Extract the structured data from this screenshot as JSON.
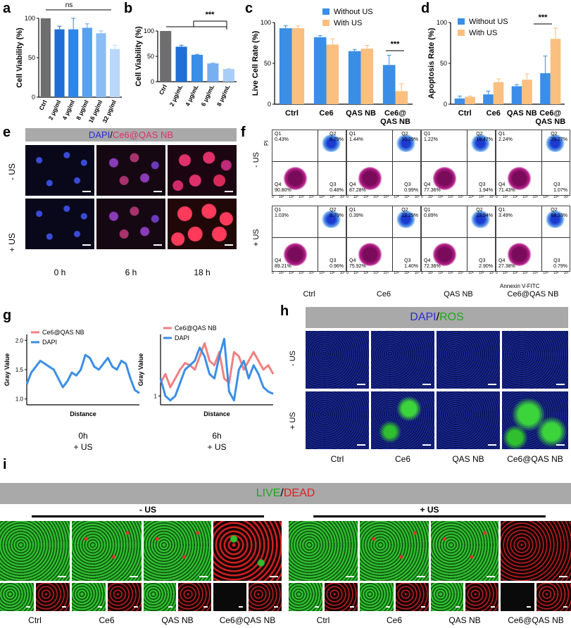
{
  "panels": {
    "a": {
      "label": "a",
      "ylabel": "Cell Viability (%)",
      "yticks": [
        "0",
        "50",
        "100"
      ],
      "sig": "ns"
    },
    "b": {
      "label": "b",
      "ylabel": "Cell Viability (%)",
      "yticks": [
        "0",
        "50",
        "100"
      ],
      "sig": "***"
    },
    "c": {
      "label": "c",
      "ylabel": "Live Cell Rate (%)",
      "yticks": [
        "0",
        "50",
        "100"
      ],
      "sig": "***",
      "legend": [
        "Without US",
        "With US"
      ]
    },
    "d": {
      "label": "d",
      "ylabel": "Apoptosis Rate (%)",
      "yticks": [
        "0",
        "50",
        "100"
      ],
      "sig": "***",
      "legend": [
        "Without US",
        "With US"
      ]
    },
    "e": {
      "label": "e",
      "title_a": "DAPI",
      "title_sep": "/",
      "title_b": "Ce6@QAS NB",
      "rows": [
        "- US",
        "+ US"
      ],
      "cols": [
        "0 h",
        "6 h",
        "18 h"
      ]
    },
    "f": {
      "label": "f",
      "ylabel": "PI",
      "xlabel": "Annexin V-FITC",
      "rows": [
        "- US",
        "+ US"
      ],
      "cols": [
        "Ctrl",
        "Ce6",
        "QAS NB",
        "Ce6@QAS NB"
      ],
      "ticks": [
        "0",
        "10¹",
        "10²",
        "10³",
        "10⁴",
        "10⁵",
        "10⁶",
        "10⁷"
      ],
      "plots": [
        {
          "q1": "Q1\n0.43%",
          "q2": "Q2\n8.29%",
          "q3": "Q3\n0.48%",
          "q4": "Q4\n90.80%"
        },
        {
          "q1": "Q1\n1.44%",
          "q2": "Q2\n10.29%",
          "q3": "Q3\n0.99%",
          "q4": "Q4\n87.28%"
        },
        {
          "q1": "Q1\n1.22%",
          "q2": "Q2\n19.47%",
          "q3": "Q3\n1.94%",
          "q4": "Q4\n77.36%"
        },
        {
          "q1": "Q1\n2.24%",
          "q2": "Q2\n25.27%",
          "q3": "Q3\n1.07%",
          "q4": "Q4\n71.43%"
        },
        {
          "q1": "Q1\n1.03%",
          "q2": "Q2\n8.79%",
          "q3": "Q3\n0.96%",
          "q4": "Q4\n89.21%"
        },
        {
          "q1": "Q1\n0.39%",
          "q2": "Q2\n22.29%",
          "q3": "Q3\n1.40%",
          "q4": "Q4\n75.92%"
        },
        {
          "q1": "Q1\n0.89%",
          "q2": "Q2\n23.94%",
          "q3": "Q3\n2.90%",
          "q4": "Q4\n72.36%"
        },
        {
          "q1": "Q1\n3.49%",
          "q2": "Q2\n68.33%",
          "q3": "Q3\n0.79%",
          "q4": "Q4\n27.38%"
        }
      ]
    },
    "g": {
      "label": "g",
      "ylabel": "Gray Value",
      "xlabel": "Distance",
      "legend": [
        "Ce6@QAS NB",
        "DAPI"
      ],
      "cap1": "0h",
      "cap1b": "+ US",
      "cap2": "6h",
      "cap2b": "+ US",
      "yt1": [
        "1.0",
        "1.5",
        "2.0"
      ],
      "yt2": [
        "1"
      ]
    },
    "h": {
      "label": "h",
      "title_a": "DAPI",
      "title_sep": "/",
      "title_b": "ROS",
      "rows": [
        "- US",
        "+ US"
      ],
      "cols": [
        "Ctrl",
        "Ce6",
        "QAS NB",
        "Ce6@QAS NB"
      ]
    },
    "i": {
      "label": "i",
      "title_a": "LIVE",
      "title_sep": "/",
      "title_b": "DEAD",
      "group1": "- US",
      "group2": "+ US",
      "cols": [
        "Ctrl",
        "Ce6",
        "QAS NB",
        "Ce6@QAS NB"
      ]
    }
  },
  "chart_data": [
    {
      "type": "bar",
      "title": "a",
      "ylabel": "Cell Viability (%)",
      "ylim": [
        0,
        100
      ],
      "categories": [
        "Ctrl",
        "2 μg/ml",
        "4 μg/ml",
        "8 μg/ml",
        "16 μg/ml",
        "32 μg/ml"
      ],
      "values": [
        100,
        86,
        86,
        88,
        81,
        61
      ],
      "errors": [
        0,
        4,
        14,
        5,
        3,
        5
      ],
      "colors": [
        "#6e6e6e",
        "#1f6fd6",
        "#2e86e6",
        "#5aa0ee",
        "#8abdf4",
        "#b9d7f8"
      ]
    },
    {
      "type": "bar",
      "title": "b",
      "ylabel": "Cell Viability (%)",
      "ylim": [
        0,
        100
      ],
      "categories": [
        "Ctrl",
        "2 μg/mL",
        "4 μg/mL",
        "6 μg/mL",
        "8 μg/mL"
      ],
      "values": [
        100,
        69,
        53,
        36,
        25
      ],
      "errors": [
        0,
        3,
        1,
        1,
        1
      ],
      "colors": [
        "#6e6e6e",
        "#1f6fd6",
        "#3a8ee8",
        "#77b0f0",
        "#a9cdf6"
      ]
    },
    {
      "type": "bar",
      "title": "c",
      "ylabel": "Live Cell Rate (%)",
      "ylim": [
        0,
        100
      ],
      "categories": [
        "Ctrl",
        "Ce6",
        "QAS NB",
        "Ce6@\nQAS NB"
      ],
      "series": [
        {
          "name": "Without US",
          "color": "#3b8ee6",
          "values": [
            93,
            82,
            65,
            48
          ],
          "errors": [
            3,
            2,
            2,
            12
          ]
        },
        {
          "name": "With US",
          "color": "#fbbf7f",
          "values": [
            93,
            73,
            68,
            16
          ],
          "errors": [
            3,
            7,
            4,
            9
          ]
        }
      ]
    },
    {
      "type": "bar",
      "title": "d",
      "ylabel": "Apoptosis Rate (%)",
      "ylim": [
        0,
        100
      ],
      "categories": [
        "Ctrl",
        "Ce6",
        "QAS NB",
        "Ce6@\nQAS NB"
      ],
      "series": [
        {
          "name": "Without US",
          "color": "#3b8ee6",
          "values": [
            7,
            12,
            22,
            38
          ],
          "errors": [
            3,
            4,
            2,
            21
          ]
        },
        {
          "name": "With US",
          "color": "#fbbf7f",
          "values": [
            9,
            27,
            30,
            80
          ],
          "errors": [
            1,
            4,
            7,
            13
          ]
        }
      ]
    },
    {
      "type": "line",
      "title": "g 0h + US",
      "xlabel": "Distance",
      "ylabel": "Gray Value",
      "ylim": [
        0.9,
        2.1
      ],
      "series": [
        {
          "name": "DAPI",
          "color": "#3b8ee6",
          "values": [
            1.25,
            1.45,
            1.55,
            1.65,
            1.6,
            1.55,
            1.5,
            1.35,
            1.2,
            1.3,
            1.45,
            1.4,
            1.5,
            1.75,
            1.7,
            1.55,
            1.5,
            1.6,
            1.7,
            1.55,
            1.5,
            1.65,
            1.6,
            1.35,
            1.15,
            1.1
          ]
        }
      ]
    },
    {
      "type": "line",
      "title": "g 6h + US",
      "xlabel": "Distance",
      "ylabel": "Gray Value",
      "ylim": [
        0.8,
        2.4
      ],
      "series": [
        {
          "name": "Ce6@QAS NB",
          "color": "#f08080",
          "values": [
            1.3,
            1.5,
            1.2,
            1.4,
            1.6,
            1.75,
            1.7,
            1.6,
            1.9,
            2.2,
            1.8,
            1.7,
            2.0,
            1.4,
            1.3,
            2.0,
            1.9,
            1.6,
            1.8,
            2.0,
            1.8,
            1.6,
            1.7,
            1.5
          ]
        },
        {
          "name": "DAPI",
          "color": "#3b8ee6",
          "values": [
            1.4,
            1.0,
            0.9,
            1.0,
            1.3,
            1.6,
            1.7,
            1.8,
            2.1,
            1.9,
            1.5,
            1.4,
            1.9,
            2.3,
            1.1,
            0.9,
            1.6,
            1.8,
            1.4,
            1.7,
            1.5,
            1.2,
            1.1,
            1.05
          ]
        }
      ]
    }
  ]
}
